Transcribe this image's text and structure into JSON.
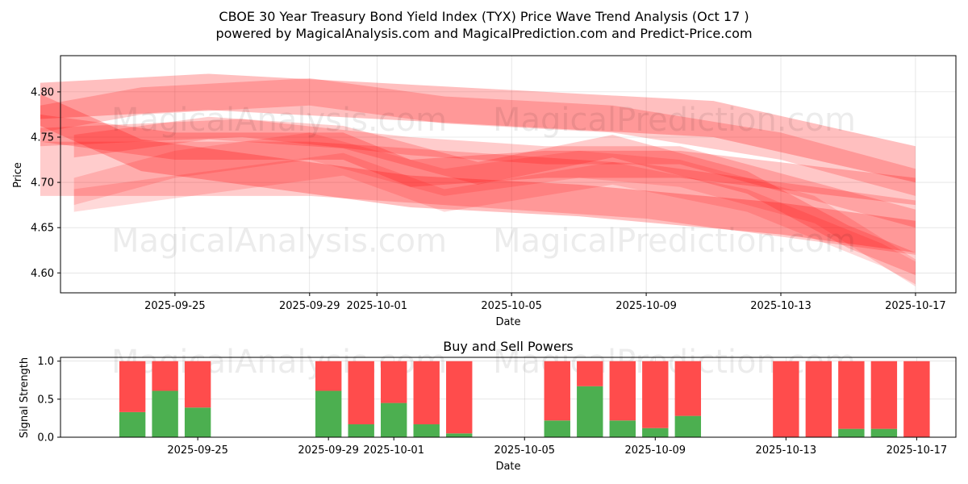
{
  "title_line1": "CBOE 30 Year Treasury Bond Yield Index (TYX) Price Wave Trend Analysis (Oct 17 )",
  "title_line2": "powered by MagicalAnalysis.com and MagicalPrediction.com and Predict-Price.com",
  "watermarks": [
    "MagicalAnalysis.com",
    "MagicalPrediction.com"
  ],
  "colors": {
    "band": "#ff0000",
    "buy": "#4caf50",
    "sell": "#ff4c4c"
  },
  "chart_data": [
    {
      "type": "area",
      "xlabel": "Date",
      "ylabel": "Price",
      "x_ticks": [
        "2025-09-25",
        "2025-09-29",
        "2025-10-01",
        "2025-10-05",
        "2025-10-09",
        "2025-10-13",
        "2025-10-17"
      ],
      "y_ticks": [
        "4.60",
        "4.65",
        "4.70",
        "4.75",
        "4.80"
      ],
      "xlim": [
        "2025-09-21.6",
        "2025-10-18.2"
      ],
      "ylim": [
        4.578,
        4.84
      ],
      "grid": true,
      "series": [
        {
          "points": [
            [
              "2025-09-21",
              4.79
            ],
            [
              "2025-09-26",
              4.8
            ],
            [
              "2025-10-01",
              4.79
            ],
            [
              "2025-10-06",
              4.78
            ],
            [
              "2025-10-11",
              4.77
            ],
            [
              "2025-10-17",
              4.72
            ]
          ],
          "width": 0.04,
          "alpha": 0.25
        },
        {
          "points": [
            [
              "2025-09-21",
              4.77
            ],
            [
              "2025-09-24",
              4.79
            ],
            [
              "2025-09-29",
              4.8
            ],
            [
              "2025-10-03",
              4.78
            ],
            [
              "2025-10-08",
              4.77
            ],
            [
              "2025-10-13",
              4.74
            ],
            [
              "2025-10-17",
              4.7
            ]
          ],
          "width": 0.03,
          "alpha": 0.2
        },
        {
          "points": [
            [
              "2025-09-21",
              4.76
            ],
            [
              "2025-09-25",
              4.74
            ],
            [
              "2025-09-30",
              4.74
            ],
            [
              "2025-10-02",
              4.71
            ],
            [
              "2025-10-06",
              4.72
            ],
            [
              "2025-10-10",
              4.72
            ],
            [
              "2025-10-17",
              4.69
            ]
          ],
          "width": 0.03,
          "alpha": 0.22
        },
        {
          "points": [
            [
              "2025-09-21",
              4.78
            ],
            [
              "2025-09-24",
              4.73
            ],
            [
              "2025-09-28",
              4.71
            ],
            [
              "2025-10-02",
              4.69
            ],
            [
              "2025-10-07",
              4.68
            ],
            [
              "2025-10-13",
              4.66
            ],
            [
              "2025-10-17",
              4.64
            ]
          ],
          "width": 0.035,
          "alpha": 0.25
        },
        {
          "points": [
            [
              "2025-09-21",
              4.715
            ],
            [
              "2025-09-25",
              4.715
            ],
            [
              "2025-09-29",
              4.715
            ],
            [
              "2025-10-03",
              4.705
            ],
            [
              "2025-10-09",
              4.69
            ],
            [
              "2025-10-13",
              4.67
            ],
            [
              "2025-10-17",
              4.65
            ]
          ],
          "width": 0.06,
          "alpha": 0.2
        },
        {
          "points": [
            [
              "2025-09-22",
              4.69
            ],
            [
              "2025-09-25",
              4.72
            ],
            [
              "2025-09-29",
              4.74
            ],
            [
              "2025-10-03",
              4.7
            ],
            [
              "2025-10-07",
              4.72
            ],
            [
              "2025-10-10",
              4.71
            ],
            [
              "2025-10-14",
              4.67
            ],
            [
              "2025-10-17",
              4.6
            ]
          ],
          "width": 0.03,
          "alpha": 0.15
        },
        {
          "points": [
            [
              "2025-09-22",
              4.74
            ],
            [
              "2025-09-26",
              4.76
            ],
            [
              "2025-09-30",
              4.75
            ],
            [
              "2025-10-04",
              4.71
            ],
            [
              "2025-10-08",
              4.74
            ],
            [
              "2025-10-12",
              4.7
            ],
            [
              "2025-10-15",
              4.64
            ],
            [
              "2025-10-17",
              4.61
            ]
          ],
          "width": 0.025,
          "alpha": 0.2
        },
        {
          "points": [
            [
              "2025-09-21",
              4.75
            ],
            [
              "2025-09-27",
              4.76
            ],
            [
              "2025-10-02",
              4.74
            ],
            [
              "2025-10-06",
              4.73
            ],
            [
              "2025-10-10",
              4.73
            ],
            [
              "2025-10-14",
              4.69
            ],
            [
              "2025-10-17",
              4.66
            ]
          ],
          "width": 0.02,
          "alpha": 0.2
        },
        {
          "points": [
            [
              "2025-09-22",
              4.68
            ],
            [
              "2025-09-26",
              4.7
            ],
            [
              "2025-09-30",
              4.72
            ],
            [
              "2025-10-03",
              4.68
            ],
            [
              "2025-10-08",
              4.71
            ],
            [
              "2025-10-12",
              4.68
            ],
            [
              "2025-10-16",
              4.62
            ],
            [
              "2025-10-17",
              4.6
            ]
          ],
          "width": 0.025,
          "alpha": 0.15
        }
      ]
    },
    {
      "type": "bar",
      "title": "Buy and Sell Powers",
      "xlabel": "Date",
      "ylabel": "Signal Strength",
      "x_ticks": [
        "2025-09-25",
        "2025-09-29",
        "2025-10-01",
        "2025-10-05",
        "2025-10-09",
        "2025-10-13",
        "2025-10-17"
      ],
      "y_ticks": [
        "0.0",
        "0.5",
        "1.0"
      ],
      "xlim": [
        "2025-09-20.8",
        "2025-10-18.2"
      ],
      "ylim": [
        0,
        1.05
      ],
      "grid": true,
      "stacked": true,
      "categories": [
        "2025-09-23",
        "2025-09-24",
        "2025-09-25",
        "2025-09-29",
        "2025-09-30",
        "2025-10-01",
        "2025-10-02",
        "2025-10-03",
        "2025-10-06",
        "2025-10-07",
        "2025-10-08",
        "2025-10-09",
        "2025-10-10",
        "2025-10-13",
        "2025-10-14",
        "2025-10-15",
        "2025-10-16",
        "2025-10-17"
      ],
      "series": [
        {
          "values": [
            0.33,
            0.61,
            0.39,
            0.61,
            0.17,
            0.45,
            0.17,
            0.05,
            0.22,
            0.67,
            0.22,
            0.12,
            0.28,
            0.0,
            0.0,
            0.11,
            0.11,
            0.0
          ]
        },
        {
          "values": [
            0.67,
            0.39,
            0.61,
            0.39,
            0.83,
            0.55,
            0.83,
            0.95,
            0.78,
            0.33,
            0.78,
            0.88,
            0.72,
            1.0,
            1.0,
            0.89,
            0.89,
            1.0
          ]
        }
      ]
    }
  ]
}
